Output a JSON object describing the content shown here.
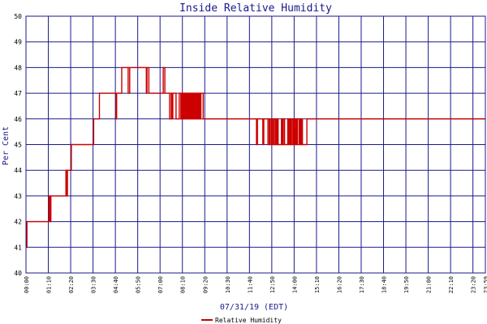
{
  "chart_data": {
    "type": "line",
    "title": "Inside Relative Humidity",
    "xlabel": "07/31/19 (EDT)",
    "ylabel": "Per Cent",
    "ylim": [
      40,
      50
    ],
    "yticks": [
      40,
      41,
      42,
      43,
      44,
      45,
      46,
      47,
      48,
      49,
      50
    ],
    "xticks": [
      "00:00",
      "01:10",
      "02:20",
      "03:30",
      "04:40",
      "05:50",
      "07:00",
      "08:10",
      "09:20",
      "10:30",
      "11:40",
      "12:50",
      "14:00",
      "15:10",
      "16:20",
      "17:30",
      "18:40",
      "19:50",
      "21:00",
      "22:10",
      "23:20",
      "23:59"
    ],
    "grid": true,
    "legend_position": "bottom",
    "colors": {
      "series": "#cc0000",
      "grid": "#1a1a8a",
      "axis_text": "#1a1a8a"
    },
    "series": [
      {
        "name": "Relative Humidity",
        "x_minutes": [
          0,
          2,
          3,
          70,
          72,
          75,
          78,
          123,
          125,
          127,
          130,
          140,
          142,
          210,
          212,
          220,
          230,
          280,
          282,
          284,
          300,
          318,
          320,
          325,
          375,
          377,
          379,
          385,
          400,
          430,
          435,
          444,
          450,
          455,
          457,
          460,
          470,
          480,
          485,
          487,
          490,
          493,
          496,
          498,
          501,
          503,
          506,
          508,
          510,
          513,
          516,
          518,
          521,
          523,
          526,
          528,
          531,
          533,
          536,
          538,
          541,
          543,
          546,
          548,
          555,
          560,
          565,
          570,
          580,
          585,
          590,
          595,
          600,
          603,
          606,
          610,
          630,
          633,
          636,
          640,
          650,
          720,
          722,
          725,
          740,
          742,
          745,
          755,
          758,
          762,
          764,
          768,
          771,
          775,
          777,
          781,
          784,
          787,
          790,
          800,
          803,
          806,
          810,
          820,
          823,
          826,
          829,
          832,
          836,
          839,
          842,
          845,
          847,
          850,
          855,
          858,
          861,
          864,
          866,
          880,
          900,
          1439
        ],
        "values": [
          41.5,
          41,
          42,
          42,
          43,
          42,
          43,
          43,
          44,
          43,
          44,
          44,
          45,
          45,
          46,
          46,
          47,
          47,
          46,
          47,
          48,
          48,
          47,
          48,
          48,
          47,
          48,
          47,
          47,
          48,
          47,
          47,
          46,
          47,
          46,
          47,
          46,
          47,
          46,
          47,
          46,
          47,
          46,
          47,
          46,
          47,
          46,
          47,
          46,
          47,
          46,
          47,
          46,
          47,
          46,
          47,
          46,
          47,
          46,
          47,
          46,
          47,
          46,
          47,
          46,
          46,
          46,
          46,
          46,
          46,
          46,
          46,
          46,
          46,
          46,
          46,
          46,
          46,
          46,
          46,
          46,
          46,
          45,
          46,
          46,
          45,
          46,
          46,
          45,
          46,
          45,
          46,
          45,
          46,
          45,
          46,
          45,
          46,
          45,
          46,
          45,
          46,
          45,
          46,
          45,
          46,
          45,
          46,
          45,
          46,
          45,
          46,
          45,
          46,
          45,
          46,
          45,
          46,
          45,
          46,
          46,
          46
        ]
      }
    ]
  }
}
